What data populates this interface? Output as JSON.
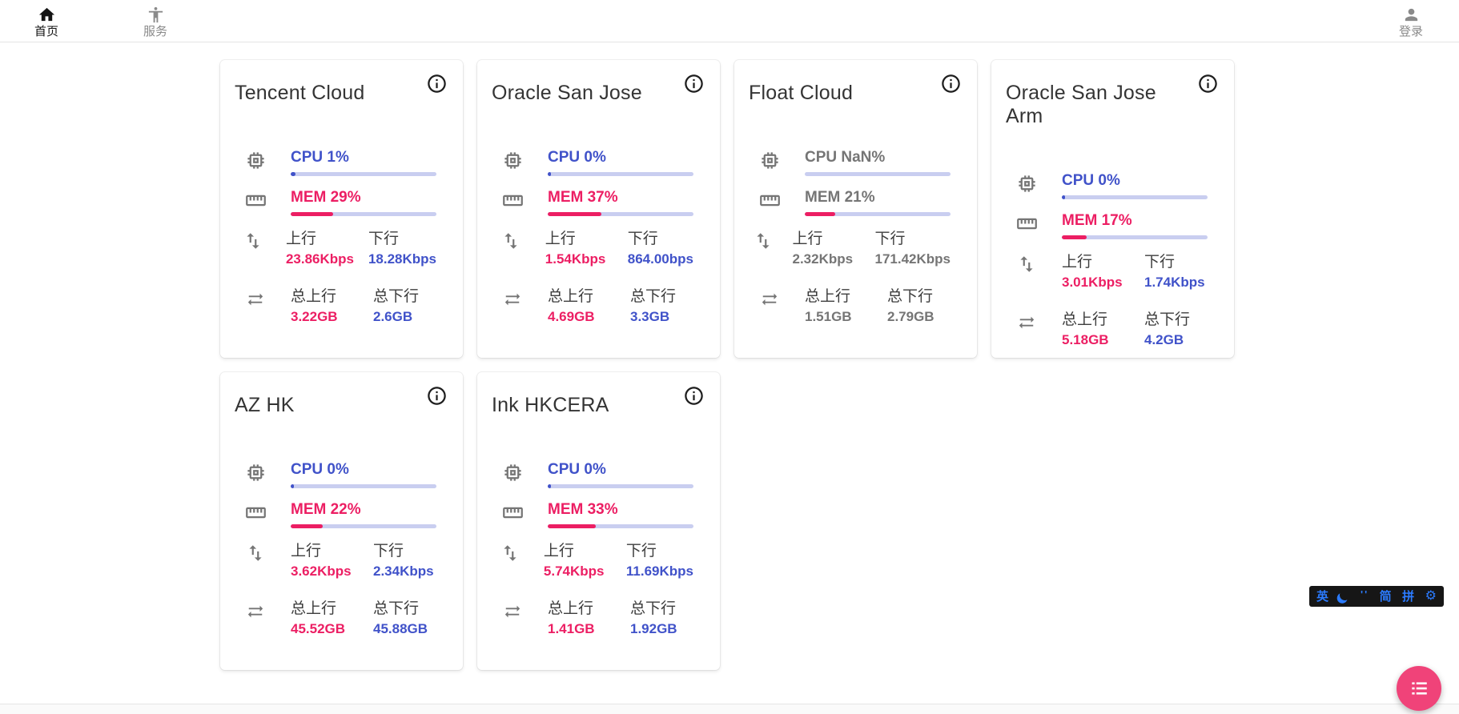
{
  "nav": {
    "items": [
      {
        "label": "首页",
        "icon": "home-icon",
        "active": true
      },
      {
        "label": "服务",
        "icon": "person-standing-icon",
        "active": false
      }
    ],
    "login": {
      "label": "登录",
      "icon": "account-icon"
    }
  },
  "labels": {
    "up": "上行",
    "down": "下行",
    "total_up": "总上行",
    "total_down": "总下行"
  },
  "servers": [
    {
      "name": "Tencent Cloud",
      "cpu_text": "CPU 1%",
      "cpu_pct": 1,
      "mem_text": "MEM 29%",
      "mem_pct": 29,
      "up": "23.86Kbps",
      "down": "18.28Kbps",
      "total_up": "3.22GB",
      "total_down": "2.6GB",
      "muted": false
    },
    {
      "name": "Oracle San Jose",
      "cpu_text": "CPU 0%",
      "cpu_pct": 0,
      "mem_text": "MEM 37%",
      "mem_pct": 37,
      "up": "1.54Kbps",
      "down": "864.00bps",
      "total_up": "4.69GB",
      "total_down": "3.3GB",
      "muted": false
    },
    {
      "name": "Float Cloud",
      "cpu_text": "CPU NaN%",
      "cpu_pct": null,
      "mem_text": "MEM 21%",
      "mem_pct": 21,
      "up": "2.32Kbps",
      "down": "171.42Kbps",
      "total_up": "1.51GB",
      "total_down": "2.79GB",
      "muted": true
    },
    {
      "name": "Oracle San Jose Arm",
      "cpu_text": "CPU 0%",
      "cpu_pct": 0,
      "mem_text": "MEM 17%",
      "mem_pct": 17,
      "up": "3.01Kbps",
      "down": "1.74Kbps",
      "total_up": "5.18GB",
      "total_down": "4.2GB",
      "muted": false
    },
    {
      "name": "AZ HK",
      "cpu_text": "CPU 0%",
      "cpu_pct": 0,
      "mem_text": "MEM 22%",
      "mem_pct": 22,
      "up": "3.62Kbps",
      "down": "2.34Kbps",
      "total_up": "45.52GB",
      "total_down": "45.88GB",
      "muted": false
    },
    {
      "name": "Ink HKCERA",
      "cpu_text": "CPU 0%",
      "cpu_pct": 0,
      "mem_text": "MEM 33%",
      "mem_pct": 33,
      "up": "5.74Kbps",
      "down": "11.69Kbps",
      "total_up": "1.41GB",
      "total_down": "1.92GB",
      "muted": false
    }
  ],
  "ime_panel": {
    "english_indicator": "英",
    "moon_icon": "moon-icon",
    "punct_indicator": "''",
    "simplified_indicator": "简",
    "pinyin_indicator": "拼",
    "gear_icon": "⚙"
  },
  "fab": {
    "icon": "list-icon"
  },
  "colors": {
    "pink": "#EC1E63",
    "blue": "#4052C9",
    "track": "#C9CEF0",
    "muted": "#757575",
    "fab_pink": "#F04379",
    "ime_blue": "#2B7BFF"
  }
}
